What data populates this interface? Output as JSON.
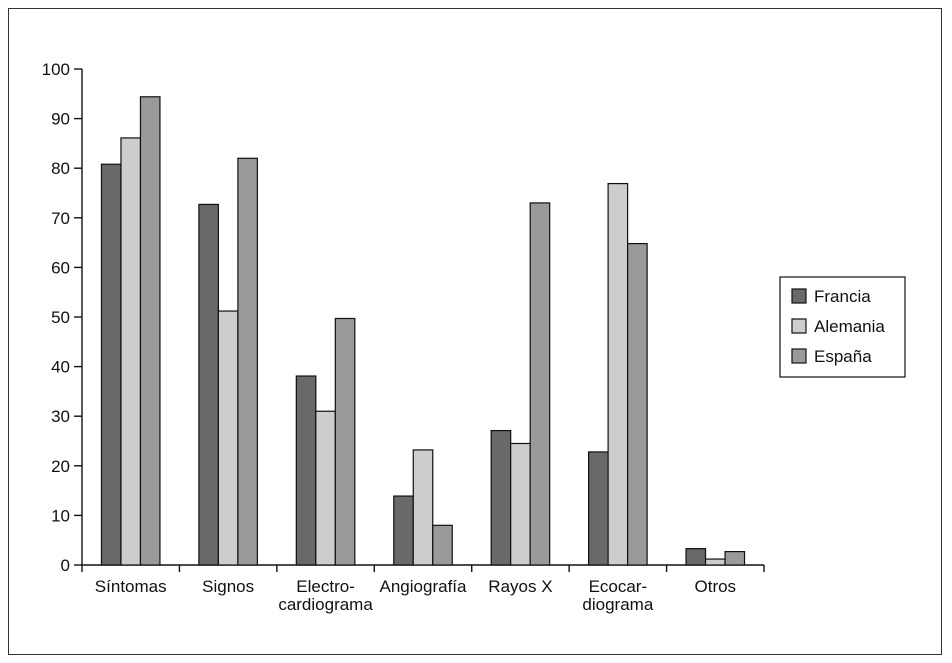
{
  "chart_data": {
    "type": "bar",
    "categories": [
      [
        "Síntomas"
      ],
      [
        "Signos"
      ],
      [
        "Electro-",
        "cardiograma"
      ],
      [
        "Angiografía"
      ],
      [
        "Rayos X"
      ],
      [
        "Ecocar-",
        "diograma"
      ],
      [
        "Otros"
      ]
    ],
    "series": [
      {
        "name": "Francia",
        "color": "#696969",
        "values": [
          80.8,
          72.7,
          38.1,
          13.9,
          27.1,
          22.8,
          3.3
        ]
      },
      {
        "name": "Alemania",
        "color": "#cdcdcd",
        "values": [
          86.1,
          51.2,
          31.0,
          23.2,
          24.5,
          76.9,
          1.2
        ]
      },
      {
        "name": "España",
        "color": "#9a9a9a",
        "values": [
          94.4,
          82.0,
          49.7,
          8.0,
          73.0,
          64.8,
          2.7
        ]
      }
    ],
    "ylim": [
      0,
      100
    ],
    "yticks": [
      0,
      10,
      20,
      30,
      40,
      50,
      60,
      70,
      80,
      90,
      100
    ],
    "legend_position": "right",
    "grid": false,
    "title": "",
    "xlabel": "",
    "ylabel": ""
  }
}
